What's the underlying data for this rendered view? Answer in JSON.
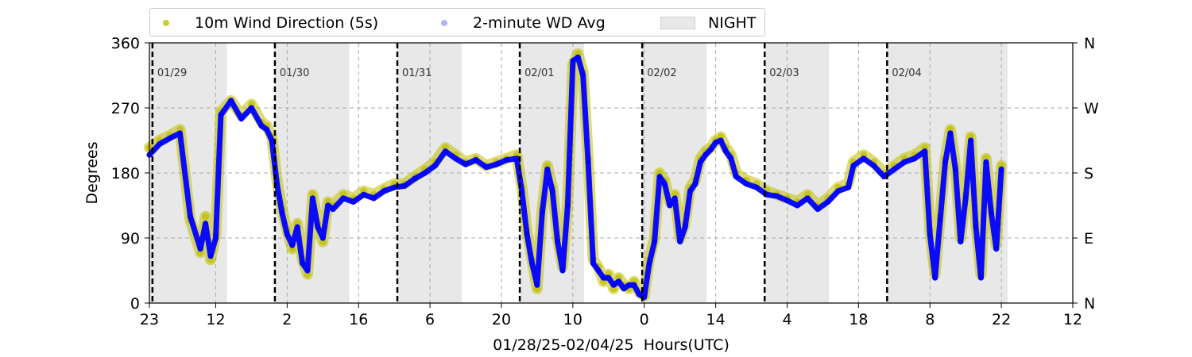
{
  "legend": {
    "placement": "top-left, above plot",
    "items": [
      {
        "label": "10m Wind Direction (5s)",
        "color": "#bfbf00",
        "marker": "dot"
      },
      {
        "label": "2-minute WD Avg",
        "color": "#0000ff",
        "marker": "dot-faint"
      },
      {
        "label": "NIGHT",
        "color": "#e8e8e8",
        "marker": "patch"
      }
    ]
  },
  "chart_data": {
    "type": "scatter",
    "xlabel": "01/28/25-02/04/25  Hours(UTC)",
    "ylabel": "Degrees",
    "ylim": [
      0,
      360
    ],
    "x_domain_hours": [
      0,
      181
    ],
    "y_ticks": [
      0,
      90,
      180,
      270,
      360
    ],
    "y_ticks_right": [
      "N",
      "E",
      "S",
      "W",
      "N"
    ],
    "x_ticks": [
      {
        "h": 0,
        "label": "23"
      },
      {
        "h": 13,
        "label": "12"
      },
      {
        "h": 27,
        "label": "2"
      },
      {
        "h": 41,
        "label": "16"
      },
      {
        "h": 55,
        "label": "6"
      },
      {
        "h": 69,
        "label": "20"
      },
      {
        "h": 83,
        "label": "10"
      },
      {
        "h": 97,
        "label": "0"
      },
      {
        "h": 111,
        "label": "14"
      },
      {
        "h": 125,
        "label": "4"
      },
      {
        "h": 139,
        "label": "18"
      },
      {
        "h": 153,
        "label": "8"
      },
      {
        "h": 167,
        "label": "22"
      },
      {
        "h": 181,
        "label": "12"
      }
    ],
    "grid": true,
    "day_markers": [
      {
        "h": 0.6,
        "label": "01/29"
      },
      {
        "h": 24.6,
        "label": "01/30"
      },
      {
        "h": 48.6,
        "label": "01/31"
      },
      {
        "h": 72.6,
        "label": "02/01"
      },
      {
        "h": 96.6,
        "label": "02/02"
      },
      {
        "h": 120.6,
        "label": "02/03"
      },
      {
        "h": 144.6,
        "label": "02/04"
      }
    ],
    "night_spans": [
      [
        0,
        15.2
      ],
      [
        24.6,
        39.2
      ],
      [
        48.6,
        61.2
      ],
      [
        72.6,
        85.2
      ],
      [
        96.6,
        109.2
      ],
      [
        120.6,
        133.2
      ],
      [
        144.6,
        168.2
      ]
    ],
    "series": [
      {
        "name": "10m Wind Direction (5s)",
        "color": "#bfbf00",
        "points": [
          [
            0,
            215
          ],
          [
            2,
            225
          ],
          [
            4,
            232
          ],
          [
            6,
            240
          ],
          [
            8,
            115
          ],
          [
            10,
            70
          ],
          [
            11,
            120
          ],
          [
            12,
            60
          ],
          [
            13,
            95
          ],
          [
            14,
            265
          ],
          [
            16,
            280
          ],
          [
            18,
            260
          ],
          [
            20,
            275
          ],
          [
            22,
            250
          ],
          [
            23,
            245
          ],
          [
            24,
            230
          ],
          [
            25,
            170
          ],
          [
            26,
            130
          ],
          [
            27,
            100
          ],
          [
            28,
            75
          ],
          [
            29,
            110
          ],
          [
            30,
            60
          ],
          [
            31,
            40
          ],
          [
            32,
            150
          ],
          [
            33,
            110
          ],
          [
            34,
            85
          ],
          [
            35,
            140
          ],
          [
            36,
            135
          ],
          [
            38,
            150
          ],
          [
            40,
            145
          ],
          [
            42,
            155
          ],
          [
            44,
            150
          ],
          [
            46,
            158
          ],
          [
            48,
            165
          ],
          [
            50,
            165
          ],
          [
            52,
            175
          ],
          [
            54,
            185
          ],
          [
            56,
            195
          ],
          [
            58,
            215
          ],
          [
            60,
            205
          ],
          [
            62,
            195
          ],
          [
            64,
            200
          ],
          [
            66,
            190
          ],
          [
            68,
            195
          ],
          [
            70,
            200
          ],
          [
            72,
            205
          ],
          [
            73,
            160
          ],
          [
            74,
            100
          ],
          [
            75,
            60
          ],
          [
            76,
            20
          ],
          [
            77,
            130
          ],
          [
            78,
            190
          ],
          [
            79,
            160
          ],
          [
            80,
            90
          ],
          [
            81,
            50
          ],
          [
            82,
            140
          ],
          [
            83,
            330
          ],
          [
            84,
            345
          ],
          [
            85,
            320
          ],
          [
            86,
            200
          ],
          [
            87,
            60
          ],
          [
            88,
            50
          ],
          [
            89,
            30
          ],
          [
            90,
            40
          ],
          [
            91,
            20
          ],
          [
            92,
            35
          ],
          [
            93,
            25
          ],
          [
            94,
            20
          ],
          [
            95,
            30
          ],
          [
            96,
            15
          ],
          [
            97,
            10
          ],
          [
            98,
            60
          ],
          [
            99,
            90
          ],
          [
            100,
            180
          ],
          [
            101,
            170
          ],
          [
            102,
            140
          ],
          [
            103,
            150
          ],
          [
            104,
            90
          ],
          [
            105,
            110
          ],
          [
            106,
            160
          ],
          [
            107,
            170
          ],
          [
            108,
            200
          ],
          [
            109,
            210
          ],
          [
            110,
            215
          ],
          [
            111,
            225
          ],
          [
            112,
            230
          ],
          [
            113,
            215
          ],
          [
            114,
            205
          ],
          [
            115,
            180
          ],
          [
            117,
            170
          ],
          [
            119,
            165
          ],
          [
            121,
            155
          ],
          [
            123,
            150
          ],
          [
            125,
            145
          ],
          [
            127,
            140
          ],
          [
            129,
            150
          ],
          [
            131,
            135
          ],
          [
            133,
            145
          ],
          [
            135,
            160
          ],
          [
            137,
            165
          ],
          [
            138,
            195
          ],
          [
            140,
            205
          ],
          [
            142,
            195
          ],
          [
            144,
            180
          ],
          [
            146,
            190
          ],
          [
            148,
            200
          ],
          [
            150,
            205
          ],
          [
            152,
            215
          ],
          [
            153,
            100
          ],
          [
            154,
            40
          ],
          [
            155,
            120
          ],
          [
            156,
            200
          ],
          [
            157,
            240
          ],
          [
            158,
            190
          ],
          [
            159,
            90
          ],
          [
            160,
            150
          ],
          [
            161,
            230
          ],
          [
            162,
            110
          ],
          [
            163,
            40
          ],
          [
            164,
            200
          ],
          [
            165,
            130
          ],
          [
            166,
            80
          ],
          [
            167,
            190
          ]
        ]
      },
      {
        "name": "2-minute WD Avg",
        "color": "#0000ff",
        "points": [
          [
            0,
            205
          ],
          [
            2,
            220
          ],
          [
            4,
            228
          ],
          [
            6,
            235
          ],
          [
            8,
            120
          ],
          [
            10,
            75
          ],
          [
            11,
            110
          ],
          [
            12,
            65
          ],
          [
            13,
            90
          ],
          [
            14,
            260
          ],
          [
            16,
            280
          ],
          [
            18,
            255
          ],
          [
            20,
            270
          ],
          [
            22,
            245
          ],
          [
            23,
            240
          ],
          [
            24,
            225
          ],
          [
            25,
            165
          ],
          [
            26,
            125
          ],
          [
            27,
            95
          ],
          [
            28,
            80
          ],
          [
            29,
            105
          ],
          [
            30,
            55
          ],
          [
            31,
            45
          ],
          [
            32,
            145
          ],
          [
            33,
            105
          ],
          [
            34,
            90
          ],
          [
            35,
            135
          ],
          [
            36,
            130
          ],
          [
            38,
            145
          ],
          [
            40,
            140
          ],
          [
            42,
            150
          ],
          [
            44,
            145
          ],
          [
            46,
            155
          ],
          [
            48,
            160
          ],
          [
            50,
            162
          ],
          [
            52,
            172
          ],
          [
            54,
            180
          ],
          [
            56,
            190
          ],
          [
            58,
            210
          ],
          [
            60,
            200
          ],
          [
            62,
            192
          ],
          [
            64,
            198
          ],
          [
            66,
            188
          ],
          [
            68,
            192
          ],
          [
            70,
            198
          ],
          [
            72,
            200
          ],
          [
            73,
            155
          ],
          [
            74,
            95
          ],
          [
            75,
            55
          ],
          [
            76,
            25
          ],
          [
            77,
            125
          ],
          [
            78,
            185
          ],
          [
            79,
            155
          ],
          [
            80,
            85
          ],
          [
            81,
            45
          ],
          [
            82,
            135
          ],
          [
            83,
            335
          ],
          [
            84,
            340
          ],
          [
            85,
            315
          ],
          [
            86,
            195
          ],
          [
            87,
            55
          ],
          [
            88,
            45
          ],
          [
            89,
            35
          ],
          [
            90,
            35
          ],
          [
            91,
            25
          ],
          [
            92,
            30
          ],
          [
            93,
            20
          ],
          [
            94,
            25
          ],
          [
            95,
            25
          ],
          [
            96,
            12
          ],
          [
            97,
            8
          ],
          [
            98,
            55
          ],
          [
            99,
            85
          ],
          [
            100,
            175
          ],
          [
            101,
            165
          ],
          [
            102,
            135
          ],
          [
            103,
            145
          ],
          [
            104,
            85
          ],
          [
            105,
            105
          ],
          [
            106,
            155
          ],
          [
            107,
            165
          ],
          [
            108,
            195
          ],
          [
            109,
            205
          ],
          [
            110,
            212
          ],
          [
            111,
            222
          ],
          [
            112,
            225
          ],
          [
            113,
            210
          ],
          [
            114,
            200
          ],
          [
            115,
            175
          ],
          [
            117,
            165
          ],
          [
            119,
            160
          ],
          [
            121,
            150
          ],
          [
            123,
            148
          ],
          [
            125,
            142
          ],
          [
            127,
            135
          ],
          [
            129,
            145
          ],
          [
            131,
            130
          ],
          [
            133,
            140
          ],
          [
            135,
            155
          ],
          [
            137,
            160
          ],
          [
            138,
            190
          ],
          [
            140,
            200
          ],
          [
            142,
            190
          ],
          [
            144,
            175
          ],
          [
            146,
            185
          ],
          [
            148,
            195
          ],
          [
            150,
            200
          ],
          [
            152,
            210
          ],
          [
            153,
            95
          ],
          [
            154,
            35
          ],
          [
            155,
            115
          ],
          [
            156,
            195
          ],
          [
            157,
            235
          ],
          [
            158,
            185
          ],
          [
            159,
            85
          ],
          [
            160,
            145
          ],
          [
            161,
            225
          ],
          [
            162,
            105
          ],
          [
            163,
            35
          ],
          [
            164,
            195
          ],
          [
            165,
            125
          ],
          [
            166,
            75
          ],
          [
            167,
            185
          ]
        ]
      }
    ]
  }
}
